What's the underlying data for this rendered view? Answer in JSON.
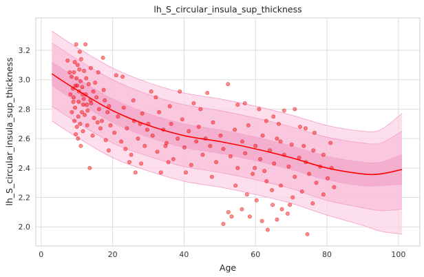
{
  "chart_data": {
    "type": "scatter",
    "title": "lh_S_circular_insula_sup_thickness",
    "xlabel": "Age",
    "ylabel": "lh_S_circular_insula_sup_thickness",
    "xlim": [
      -1.5,
      106
    ],
    "ylim": [
      1.87,
      3.42
    ],
    "x_ticks": [
      0,
      20,
      40,
      60,
      80,
      100
    ],
    "y_ticks": [
      2.0,
      2.2,
      2.4,
      2.6,
      2.8,
      3.0,
      3.2
    ],
    "x_tick_labels": [
      "0",
      "20",
      "40",
      "60",
      "80",
      "100"
    ],
    "y_tick_labels": [
      "2.0",
      "2.2",
      "2.4",
      "2.6",
      "2.8",
      "3.0",
      "3.2"
    ],
    "grid": true,
    "colors": {
      "points": "#ff0000",
      "median_line": "#ff0000",
      "band_outer": "#fbd3e6",
      "band_mid": "#f8bfd9",
      "band_inner": "#f3a9ca",
      "band_edge": "#f2a6cc"
    },
    "median_curve": {
      "x": [
        3,
        10,
        20,
        30,
        40,
        50,
        60,
        70,
        80,
        90,
        95,
        101
      ],
      "y": [
        3.04,
        2.93,
        2.79,
        2.69,
        2.62,
        2.58,
        2.53,
        2.47,
        2.4,
        2.36,
        2.36,
        2.39
      ]
    },
    "band_outer": {
      "upper": [
        3.33,
        3.22,
        3.08,
        2.98,
        2.91,
        2.87,
        2.82,
        2.76,
        2.69,
        2.65,
        2.66,
        2.77
      ],
      "lower": [
        2.72,
        2.61,
        2.47,
        2.38,
        2.31,
        2.27,
        2.22,
        2.16,
        2.08,
        2.01,
        1.97,
        1.95
      ]
    },
    "band_mid": {
      "upper": [
        3.25,
        3.14,
        3.0,
        2.9,
        2.83,
        2.79,
        2.74,
        2.68,
        2.61,
        2.57,
        2.57,
        2.65
      ]
    },
    "band_inner": {
      "upper": [
        3.12,
        3.01,
        2.87,
        2.77,
        2.7,
        2.66,
        2.61,
        2.55,
        2.48,
        2.44,
        2.44,
        2.49
      ],
      "lower": [
        2.96,
        2.85,
        2.71,
        2.61,
        2.54,
        2.5,
        2.45,
        2.39,
        2.32,
        2.28,
        2.28,
        2.29
      ]
    },
    "points_lower_mid": [
      2.82,
      2.71,
      2.57,
      2.48,
      2.41,
      2.37,
      2.32,
      2.26,
      2.18,
      2.13,
      2.11,
      2.12
    ],
    "points": [
      [
        8.5,
        3.02
      ],
      [
        9.1,
        2.88
      ],
      [
        9.6,
        2.96
      ],
      [
        10.2,
        3.1
      ],
      [
        10.5,
        2.85
      ],
      [
        11.0,
        2.99
      ],
      [
        11.4,
        2.78
      ],
      [
        12.0,
        3.06
      ],
      [
        12.5,
        2.9
      ],
      [
        9.3,
        2.72
      ],
      [
        10.8,
        3.19
      ],
      [
        11.7,
        2.65
      ],
      [
        9.8,
        3.24
      ],
      [
        10.3,
        2.6
      ],
      [
        8.9,
        2.94
      ],
      [
        12.8,
        2.83
      ],
      [
        13.3,
        2.97
      ],
      [
        10.0,
        2.68
      ],
      [
        11.2,
        3.14
      ],
      [
        9.5,
        2.81
      ],
      [
        8.2,
        2.9
      ],
      [
        10.6,
        2.92
      ],
      [
        11.9,
        2.87
      ],
      [
        9.9,
        3.01
      ],
      [
        12.2,
        2.76
      ],
      [
        10.9,
        2.7
      ],
      [
        9.2,
        3.05
      ],
      [
        13.0,
        2.79
      ],
      [
        14.0,
        2.84
      ],
      [
        11.5,
        2.95
      ],
      [
        14.8,
        2.74
      ],
      [
        15.5,
        2.88
      ],
      [
        16.2,
        2.8
      ],
      [
        17.0,
        2.72
      ],
      [
        17.8,
        2.86
      ],
      [
        18.6,
        2.78
      ],
      [
        16.6,
        2.67
      ],
      [
        15.1,
        2.98
      ],
      [
        19.4,
        2.69
      ],
      [
        14.4,
        2.62
      ],
      [
        17.3,
        3.15
      ],
      [
        18.1,
        2.59
      ],
      [
        16.0,
        3.05
      ],
      [
        19.0,
        2.82
      ],
      [
        15.8,
        2.71
      ],
      [
        13.6,
        2.4
      ],
      [
        18.9,
        2.52
      ],
      [
        17.5,
        2.93
      ],
      [
        20.5,
        2.64
      ],
      [
        21.5,
        2.75
      ],
      [
        22.4,
        2.58
      ],
      [
        23.1,
        2.81
      ],
      [
        24.0,
        2.67
      ],
      [
        25.2,
        2.49
      ],
      [
        26.0,
        2.72
      ],
      [
        27.1,
        2.6
      ],
      [
        28.3,
        2.77
      ],
      [
        29.0,
        2.55
      ],
      [
        22.8,
        3.02
      ],
      [
        24.7,
        2.44
      ],
      [
        21.0,
        3.03
      ],
      [
        30.0,
        2.7
      ],
      [
        31.2,
        2.62
      ],
      [
        32.5,
        2.51
      ],
      [
        33.0,
        2.78
      ],
      [
        34.2,
        2.66
      ],
      [
        35.1,
        2.57
      ],
      [
        36.4,
        2.7
      ],
      [
        37.0,
        2.46
      ],
      [
        38.2,
        2.6
      ],
      [
        39.5,
        2.73
      ],
      [
        40.1,
        2.54
      ],
      [
        41.3,
        2.65
      ],
      [
        42.0,
        2.42
      ],
      [
        43.4,
        2.58
      ],
      [
        44.1,
        2.68
      ],
      [
        45.2,
        2.49
      ],
      [
        46.0,
        2.6
      ],
      [
        47.3,
        2.55
      ],
      [
        48.1,
        2.71
      ],
      [
        49.0,
        2.44
      ],
      [
        50.2,
        2.62
      ],
      [
        51.0,
        2.53
      ],
      [
        52.3,
        2.97
      ],
      [
        53.0,
        2.48
      ],
      [
        54.2,
        2.66
      ],
      [
        55.0,
        2.4
      ],
      [
        56.3,
        2.58
      ],
      [
        57.1,
        2.5
      ],
      [
        58.0,
        2.69
      ],
      [
        59.2,
        2.36
      ],
      [
        60.0,
        2.55
      ],
      [
        61.3,
        2.46
      ],
      [
        62.0,
        2.62
      ],
      [
        63.1,
        2.31
      ],
      [
        64.0,
        2.52
      ],
      [
        65.2,
        2.43
      ],
      [
        66.0,
        2.6
      ],
      [
        67.1,
        2.28
      ],
      [
        68.0,
        2.49
      ],
      [
        69.3,
        2.41
      ],
      [
        70.1,
        2.56
      ],
      [
        71.0,
        2.34
      ],
      [
        72.2,
        2.47
      ],
      [
        73.0,
        2.24
      ],
      [
        74.1,
        2.44
      ],
      [
        75.0,
        2.36
      ],
      [
        76.2,
        2.52
      ],
      [
        77.0,
        2.3
      ],
      [
        78.1,
        2.41
      ],
      [
        79.0,
        2.49
      ],
      [
        80.2,
        2.33
      ],
      [
        81.3,
        2.4
      ],
      [
        82.0,
        2.27
      ],
      [
        51.0,
        2.02
      ],
      [
        52.4,
        2.1
      ],
      [
        53.3,
        2.07
      ],
      [
        56.2,
        2.12
      ],
      [
        58.4,
        2.07
      ],
      [
        60.3,
        2.18
      ],
      [
        61.8,
        2.04
      ],
      [
        63.4,
        1.98
      ],
      [
        64.8,
        2.15
      ],
      [
        66.0,
        2.05
      ],
      [
        67.4,
        2.12
      ],
      [
        69.0,
        2.09
      ],
      [
        70.4,
        2.2
      ],
      [
        74.5,
        1.95
      ],
      [
        76.0,
        2.16
      ],
      [
        79.0,
        2.22
      ],
      [
        81.0,
        2.57
      ],
      [
        74.0,
        2.67
      ],
      [
        71.0,
        2.8
      ],
      [
        68.0,
        2.79
      ],
      [
        65.0,
        2.75
      ],
      [
        61.0,
        2.8
      ],
      [
        57.0,
        2.84
      ],
      [
        55.0,
        2.83
      ],
      [
        63.0,
        2.72
      ],
      [
        66.5,
        2.7
      ],
      [
        72.5,
        2.68
      ],
      [
        76.5,
        2.64
      ],
      [
        67.0,
        2.58
      ],
      [
        73.5,
        2.55
      ],
      [
        62.5,
        2.38
      ],
      [
        64.6,
        2.25
      ],
      [
        57.6,
        2.22
      ],
      [
        54.4,
        2.28
      ],
      [
        59.8,
        2.4
      ],
      [
        69.6,
        2.15
      ],
      [
        33.5,
        2.37
      ],
      [
        36.0,
        2.82
      ],
      [
        28.0,
        2.43
      ],
      [
        40.5,
        2.37
      ],
      [
        44.6,
        2.8
      ],
      [
        47.8,
        2.34
      ],
      [
        25.8,
        2.86
      ],
      [
        32.1,
        2.88
      ],
      [
        38.8,
        2.92
      ],
      [
        42.7,
        2.84
      ],
      [
        46.5,
        2.91
      ],
      [
        30.8,
        2.92
      ],
      [
        26.4,
        2.37
      ],
      [
        35.6,
        2.44
      ],
      [
        34.8,
        2.55
      ],
      [
        29.7,
        2.66
      ],
      [
        27.7,
        2.7
      ],
      [
        23.6,
        2.53
      ],
      [
        13.9,
        3.08
      ],
      [
        12.4,
        3.24
      ],
      [
        11.1,
        2.55
      ],
      [
        9.7,
        2.63
      ],
      [
        10.4,
        2.75
      ],
      [
        11.8,
        2.83
      ],
      [
        8.6,
        2.78
      ],
      [
        12.9,
        2.69
      ],
      [
        13.8,
        2.86
      ],
      [
        14.6,
        2.92
      ],
      [
        9.4,
        3.12
      ],
      [
        10.1,
        2.96
      ],
      [
        11.6,
        2.9
      ],
      [
        12.6,
        3.01
      ],
      [
        10.7,
        3.07
      ],
      [
        9.0,
        2.85
      ],
      [
        8.0,
        3.05
      ],
      [
        7.4,
        3.13
      ]
    ]
  }
}
